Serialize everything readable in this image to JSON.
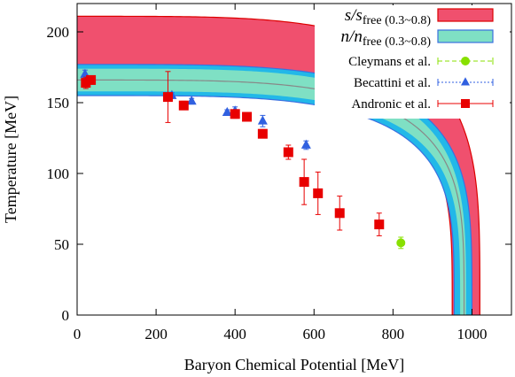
{
  "chart_data": {
    "type": "area",
    "xlabel": "Baryon Chemical Potential  [MeV]",
    "ylabel": "Temperature  [MeV]",
    "xlim": [
      0,
      1100
    ],
    "ylim": [
      0,
      220
    ],
    "xticks": [
      0,
      200,
      400,
      600,
      800,
      1000
    ],
    "yticks": [
      0,
      50,
      100,
      150,
      200
    ],
    "grid": false,
    "legend_position": "top-right",
    "legend": [
      {
        "label_main": "s/s",
        "label_sub": "free",
        "label_tail": " (0.3~0.8)"
      },
      {
        "label_main": "n/n",
        "label_sub": "free",
        "label_tail": " (0.3~0.8)"
      },
      {
        "label": "Cleymans et al."
      },
      {
        "label": "Becattini et al."
      },
      {
        "label": "Andronic et al."
      }
    ],
    "colors": {
      "entropy_band": "#f0506e",
      "entropy_edge": "#dd0000",
      "density_band": "#7fe0c4",
      "density_band_edge": "#22b8e8",
      "density_edge": "#3a70e0",
      "center_line": "#888888",
      "cleymans": "#88e000",
      "becattini": "#3060e0",
      "andronic": "#e80000"
    },
    "bands": {
      "entropy": {
        "T_top": 211,
        "T_bottom": 165,
        "mu_top": 1020,
        "mu_bottom": 950
      },
      "density": {
        "T_top": 177,
        "T_center": 166,
        "T_bottom": 155,
        "mu_top": 1000,
        "mu_center": 980,
        "mu_bottom": 955
      }
    },
    "series": [
      {
        "name": "Cleymans et al.",
        "marker": "circle",
        "points": [
          {
            "x": 820,
            "y": 51,
            "yerr": 4
          }
        ]
      },
      {
        "name": "Becattini et al.",
        "marker": "triangle",
        "points": [
          {
            "x": 20,
            "y": 170,
            "yerr": 3
          },
          {
            "x": 240,
            "y": 155,
            "yerr": 2
          },
          {
            "x": 290,
            "y": 151,
            "yerr": 2
          },
          {
            "x": 380,
            "y": 143,
            "yerr": 2
          },
          {
            "x": 400,
            "y": 144,
            "yerr": 3
          },
          {
            "x": 470,
            "y": 137,
            "yerr": 4
          },
          {
            "x": 580,
            "y": 120,
            "yerr": 3
          }
        ]
      },
      {
        "name": "Andronic et al.",
        "marker": "square",
        "points": [
          {
            "x": 22,
            "y": 164,
            "yerr": 4
          },
          {
            "x": 35,
            "y": 166,
            "yerr": 3
          },
          {
            "x": 230,
            "y": 154,
            "yerr": 18
          },
          {
            "x": 270,
            "y": 148,
            "yerr": 3
          },
          {
            "x": 400,
            "y": 142,
            "yerr": 3
          },
          {
            "x": 430,
            "y": 140,
            "yerr": 3
          },
          {
            "x": 470,
            "y": 128,
            "yerr": 3
          },
          {
            "x": 535,
            "y": 115,
            "yerr": 5
          },
          {
            "x": 575,
            "y": 94,
            "yerr": 16
          },
          {
            "x": 610,
            "y": 86,
            "yerr": 15
          },
          {
            "x": 665,
            "y": 72,
            "yerr": 12
          },
          {
            "x": 765,
            "y": 64,
            "yerr": 8
          }
        ]
      }
    ]
  }
}
